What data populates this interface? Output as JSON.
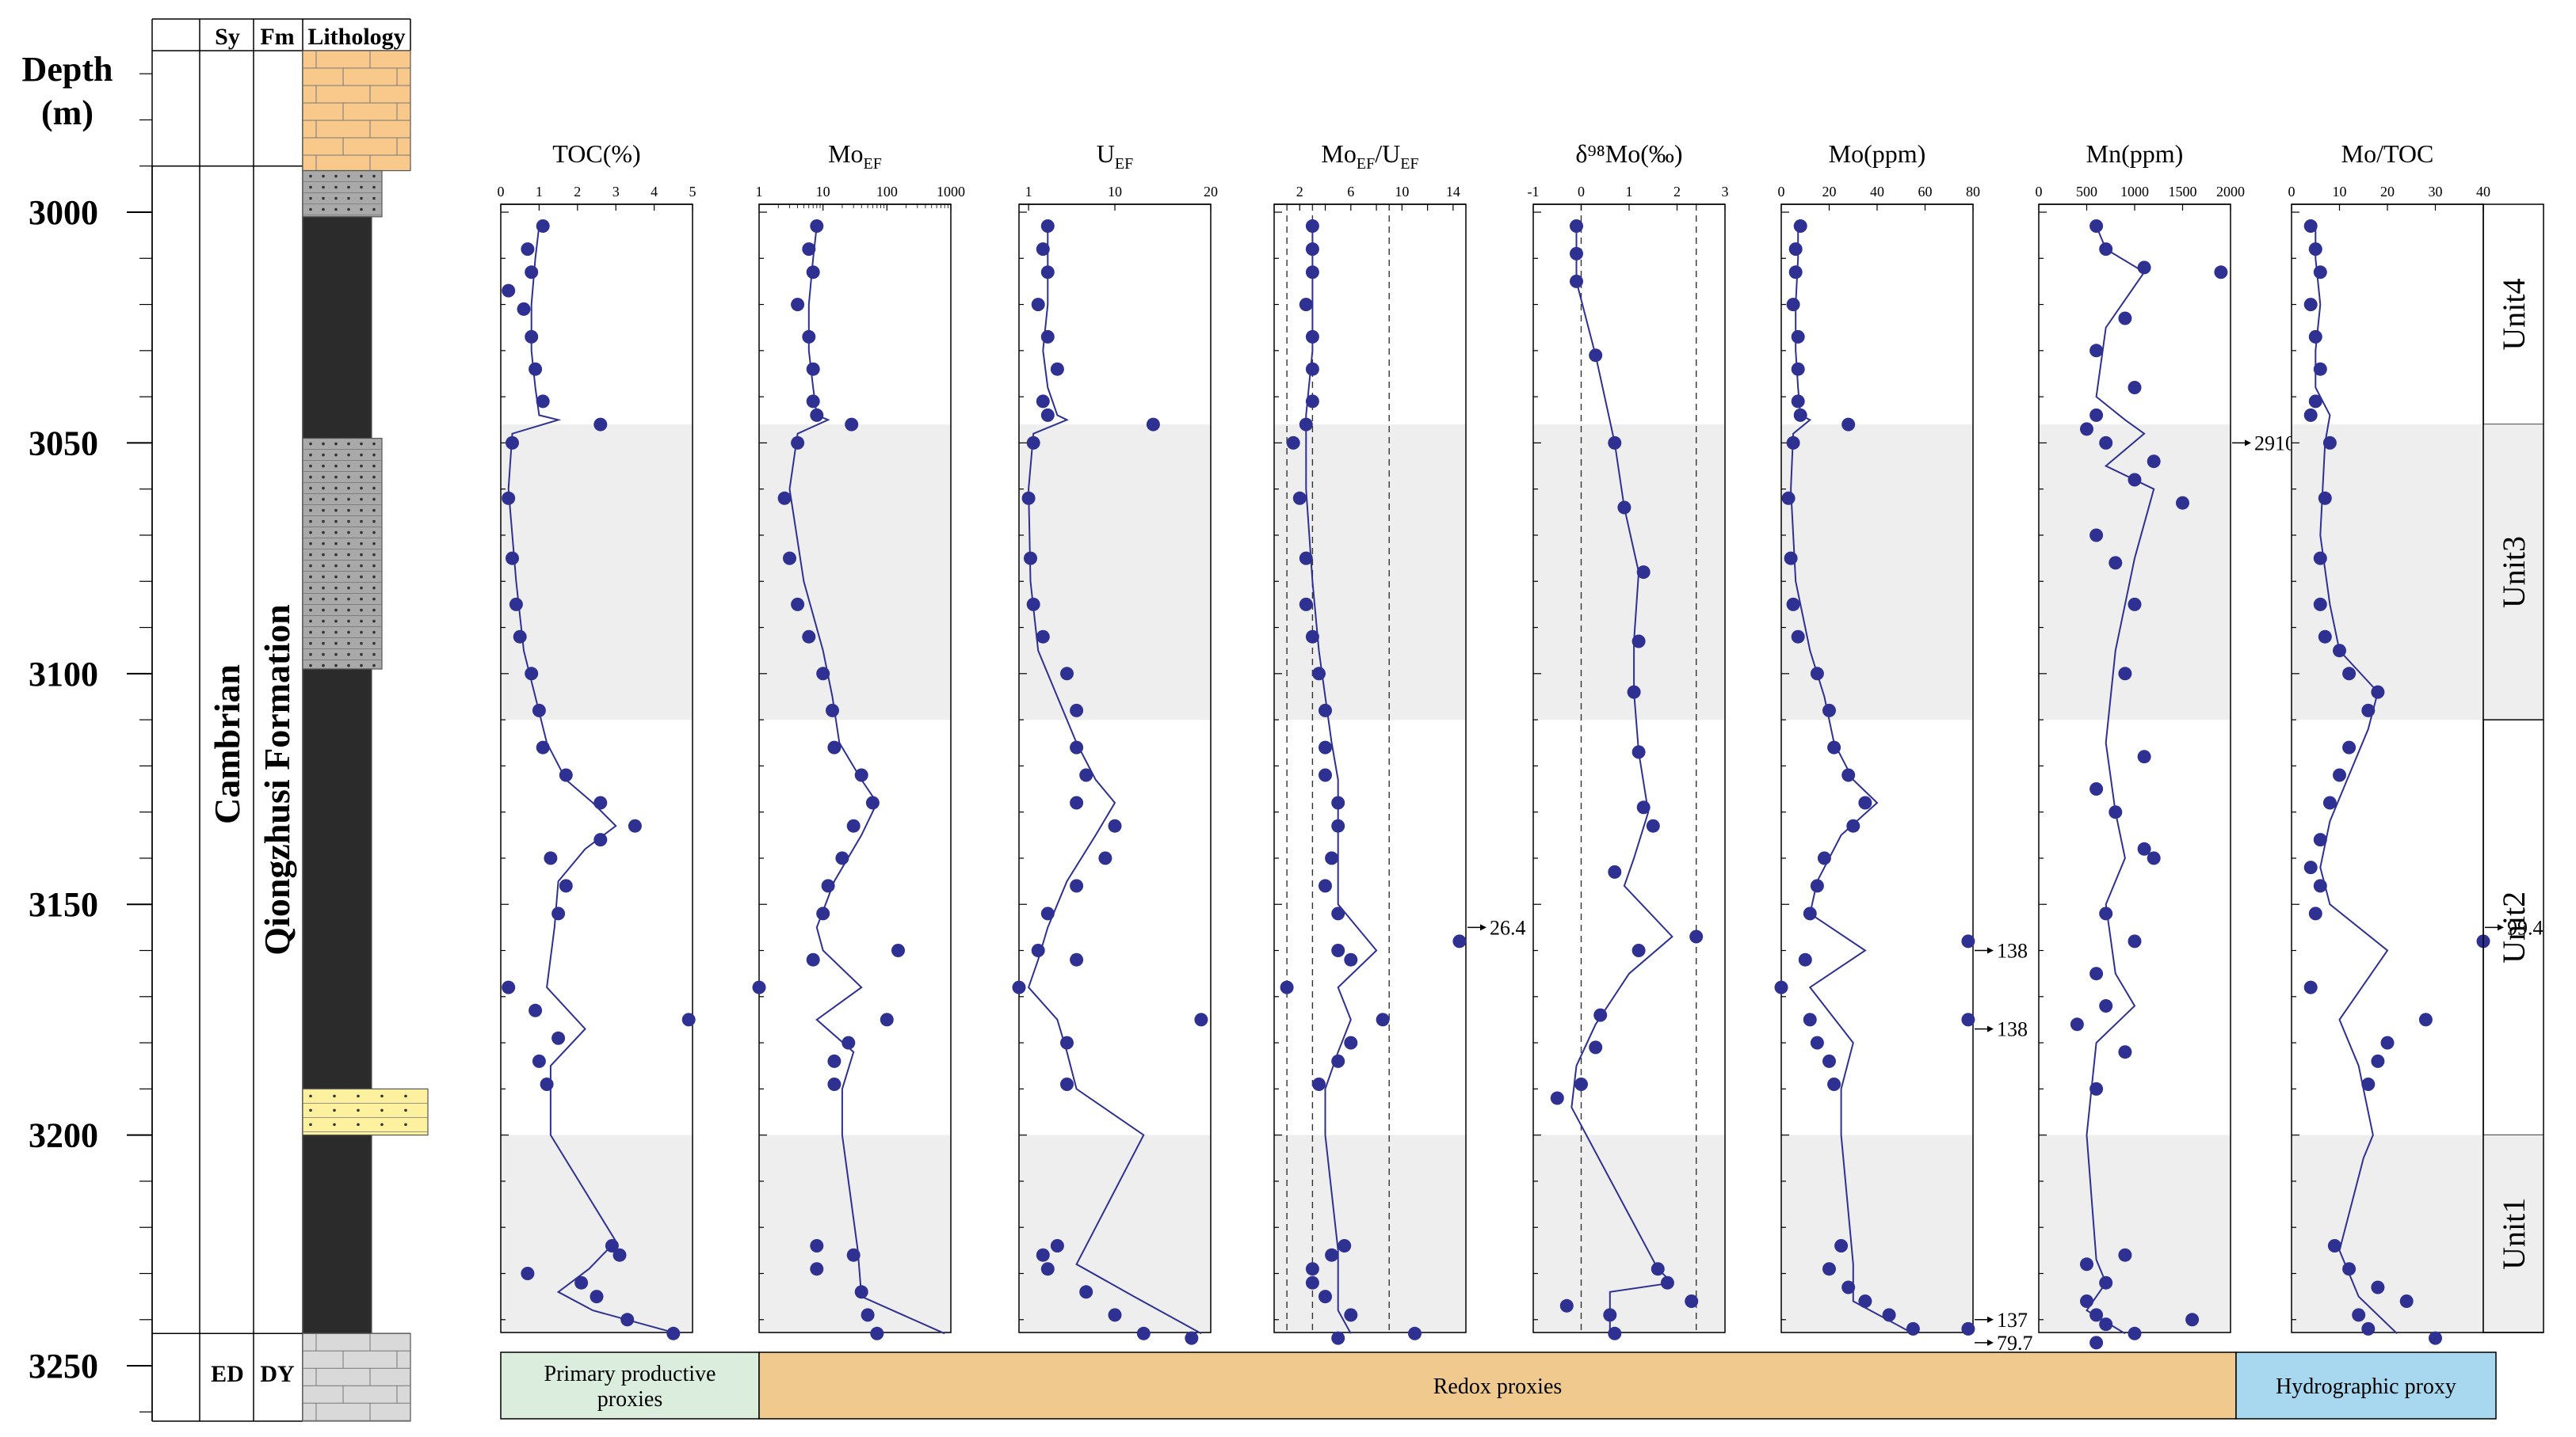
{
  "column": {
    "depth_label": [
      "Depth",
      "(m)"
    ],
    "headers": {
      "sy": "Sy",
      "fm": "Fm",
      "lithology": "Lithology"
    },
    "system": "Cambrian",
    "formation": "Qiongzhusi Formation",
    "bottom_system": "ED",
    "bottom_formation": "DY",
    "depth_ticks": [
      "3000",
      "3050",
      "3100",
      "3150",
      "3200",
      "3250"
    ],
    "depth_range": [
      2965,
      3262
    ],
    "lithology": [
      {
        "from": 2965,
        "to": 2991,
        "type": "dolomite",
        "color": "#f9c98c"
      },
      {
        "from": 2991,
        "to": 3001,
        "type": "silty-mudstone",
        "color": "#a9a9a9"
      },
      {
        "from": 3001,
        "to": 3049,
        "type": "black-shale",
        "color": "#2b2b2b"
      },
      {
        "from": 3049,
        "to": 3099,
        "type": "silty-mudstone",
        "color": "#a9a9a9"
      },
      {
        "from": 3099,
        "to": 3190,
        "type": "black-shale",
        "color": "#2b2b2b"
      },
      {
        "from": 3190,
        "to": 3200,
        "type": "sandstone",
        "color": "#fdf1a0"
      },
      {
        "from": 3200,
        "to": 3243,
        "type": "black-shale",
        "color": "#2b2b2b"
      },
      {
        "from": 3243,
        "to": 3262,
        "type": "limestone",
        "color": "#d9d9d9"
      }
    ]
  },
  "units": [
    {
      "label": "Unit4",
      "from": 2965,
      "to": 3046,
      "shaded": false
    },
    {
      "label": "Unit3",
      "from": 3046,
      "to": 3110,
      "shaded": true
    },
    {
      "label": "Unit2",
      "from": 3110,
      "to": 3200,
      "shaded": false
    },
    {
      "label": "Unit1",
      "from": 3200,
      "to": 3243,
      "shaded": true
    }
  ],
  "categories": [
    {
      "label": "Primary productive proxies",
      "lines": [
        "Primary productive",
        "proxies"
      ],
      "color": "#dbeedd"
    },
    {
      "label": "Redox proxies",
      "lines": [
        "Redox proxies"
      ],
      "color": "#f0c98f"
    },
    {
      "label": "Hydrographic proxy",
      "lines": [
        "Hydrographic proxy"
      ],
      "color": "#a7d8f0"
    }
  ],
  "colors": {
    "point": "#2e3192",
    "line": "#2e3192",
    "shade": "#eeeeee"
  },
  "chart_data": [
    {
      "type": "scatter",
      "title": "TOC(%)",
      "title_sub": "",
      "scale": "linear",
      "xlim": [
        0,
        5
      ],
      "ticks": [
        0,
        1,
        2,
        3,
        4,
        5
      ],
      "tick_labels": [
        "0",
        "1",
        "2",
        "3",
        "4",
        "5"
      ],
      "x": [
        1.1,
        0.7,
        0.8,
        0.2,
        0.6,
        0.8,
        0.9,
        1.1,
        2.6,
        0.3,
        0.2,
        0.3,
        0.4,
        0.5,
        0.8,
        1.0,
        1.1,
        1.7,
        2.6,
        3.5,
        2.6,
        1.3,
        1.7,
        1.5,
        0.2,
        4.9,
        0.9,
        1.0,
        1.5,
        1.2,
        2.9,
        3.1,
        0.7,
        2.1,
        2.5,
        3.3,
        4.5
      ],
      "y": [
        3003,
        3008,
        3013,
        3017,
        3021,
        3027,
        3034,
        3041,
        3046,
        3050,
        3062,
        3075,
        3085,
        3092,
        3100,
        3108,
        3116,
        3122,
        3128,
        3133,
        3136,
        3140,
        3146,
        3152,
        3168,
        3175,
        3173,
        3184,
        3179,
        3189,
        3224,
        3226,
        3230,
        3232,
        3235,
        3240,
        3243
      ],
      "trend_x": [
        1.0,
        0.9,
        0.8,
        0.8,
        0.9,
        1.0,
        1.5,
        0.3,
        0.2,
        0.4,
        0.6,
        0.9,
        1.2,
        1.7,
        2.4,
        3.0,
        2.2,
        1.5,
        1.4,
        1.2,
        2.2,
        1.3,
        1.3,
        3.0,
        2.3,
        1.5,
        2.4,
        4.6
      ],
      "trend_y": [
        3003,
        3010,
        3020,
        3030,
        3038,
        3044,
        3045,
        3048,
        3060,
        3080,
        3095,
        3105,
        3115,
        3123,
        3128,
        3133,
        3138,
        3145,
        3155,
        3168,
        3177,
        3185,
        3200,
        3223,
        3229,
        3234,
        3238,
        3243
      ],
      "annotations": []
    },
    {
      "type": "scatter",
      "title": "Mo",
      "title_sub": "EF",
      "scale": "log",
      "xlim": [
        1,
        1000
      ],
      "ticks": [
        1,
        10,
        100,
        1000
      ],
      "tick_labels": [
        "1",
        "10",
        "100",
        "1000"
      ],
      "x": [
        8,
        6,
        7,
        4,
        6,
        7,
        7,
        8,
        28,
        4,
        2.5,
        3,
        4,
        6,
        10,
        14,
        15,
        40,
        60,
        30,
        20,
        12,
        10,
        7,
        1,
        150,
        100,
        25,
        15,
        15,
        8,
        8,
        30,
        40,
        50,
        70
      ],
      "y": [
        3003,
        3008,
        3013,
        3020,
        3027,
        3034,
        3041,
        3044,
        3046,
        3050,
        3062,
        3075,
        3085,
        3092,
        3100,
        3108,
        3116,
        3122,
        3128,
        3133,
        3140,
        3146,
        3152,
        3162,
        3168,
        3160,
        3175,
        3180,
        3184,
        3189,
        3224,
        3229,
        3226,
        3234,
        3239,
        3243
      ],
      "trend_x": [
        8,
        7,
        6,
        6,
        7,
        8,
        12,
        4,
        3,
        5,
        10,
        14,
        18,
        40,
        70,
        40,
        15,
        8,
        10,
        40,
        8,
        30,
        20,
        20,
        35,
        40,
        800
      ],
      "trend_y": [
        3003,
        3010,
        3020,
        3030,
        3038,
        3044,
        3045,
        3048,
        3060,
        3080,
        3095,
        3105,
        3115,
        3123,
        3128,
        3135,
        3145,
        3155,
        3160,
        3168,
        3175,
        3182,
        3190,
        3200,
        3225,
        3235,
        3243
      ],
      "annotations": []
    },
    {
      "type": "scatter",
      "title": "U",
      "title_sub": "EF",
      "scale": "linear",
      "xlim": [
        0,
        20
      ],
      "ticks": [
        1,
        10,
        20
      ],
      "tick_labels": [
        "1",
        "10",
        "20"
      ],
      "x": [
        3,
        2.5,
        3,
        2,
        3,
        4,
        2.5,
        3,
        14,
        1.5,
        1,
        1.2,
        1.5,
        2.5,
        5,
        6,
        6,
        7,
        6,
        10,
        9,
        6,
        3,
        2,
        6,
        0,
        19,
        5,
        5,
        4,
        2.5,
        3,
        7,
        10,
        13,
        18
      ],
      "y": [
        3003,
        3008,
        3013,
        3020,
        3027,
        3034,
        3041,
        3044,
        3046,
        3050,
        3062,
        3075,
        3085,
        3092,
        3100,
        3108,
        3116,
        3122,
        3128,
        3133,
        3140,
        3146,
        3152,
        3160,
        3162,
        3168,
        3175,
        3180,
        3189,
        3224,
        3226,
        3229,
        3234,
        3239,
        3243,
        3244
      ],
      "trend_x": [
        3,
        3,
        3,
        2.5,
        3,
        4,
        5,
        1.5,
        1,
        1.2,
        2,
        4,
        6,
        8,
        10,
        8,
        5,
        3,
        2,
        1,
        4,
        5,
        6,
        13,
        6,
        12,
        19
      ],
      "trend_y": [
        3003,
        3010,
        3020,
        3030,
        3038,
        3044,
        3045,
        3048,
        3060,
        3080,
        3095,
        3105,
        3115,
        3123,
        3128,
        3135,
        3145,
        3155,
        3162,
        3168,
        3175,
        3182,
        3190,
        3200,
        3228,
        3235,
        3243
      ],
      "annotations": []
    },
    {
      "type": "scatter",
      "title": "Mo",
      "title_sub": "EF",
      "title_rest": "/U",
      "title_sub2": "EF",
      "scale": "linear",
      "xlim": [
        0,
        15
      ],
      "ticks": [
        0,
        2,
        4,
        6,
        8,
        10,
        12,
        14
      ],
      "tick_labels": [
        "",
        "2",
        "",
        "6",
        "",
        "10",
        "",
        "14"
      ],
      "ref_lines": [
        1,
        3,
        9
      ],
      "x": [
        3,
        3,
        3,
        2.5,
        3,
        3,
        3,
        2.5,
        1.5,
        2,
        2.5,
        2.5,
        3,
        3.5,
        4,
        4,
        4,
        5,
        5,
        4.5,
        4,
        5,
        5,
        6,
        1,
        8.5,
        6,
        5,
        3.5,
        14.5,
        5.5,
        4.5,
        3,
        3,
        4,
        6,
        11,
        5
      ],
      "y": [
        3003,
        3008,
        3013,
        3020,
        3027,
        3034,
        3041,
        3046,
        3050,
        3062,
        3075,
        3085,
        3092,
        3100,
        3108,
        3116,
        3122,
        3128,
        3133,
        3140,
        3146,
        3152,
        3160,
        3162,
        3168,
        3175,
        3180,
        3184,
        3189,
        3158,
        3224,
        3226,
        3229,
        3232,
        3235,
        3239,
        3243,
        3244
      ],
      "trend_x": [
        3,
        3,
        3,
        3,
        2.5,
        2.5,
        3,
        3.5,
        4,
        4.5,
        5,
        5,
        5,
        8,
        5,
        6,
        5,
        4,
        4,
        5,
        5,
        5,
        6
      ],
      "trend_y": [
        3003,
        3010,
        3020,
        3030,
        3044,
        3060,
        3080,
        3095,
        3105,
        3115,
        3123,
        3135,
        3150,
        3160,
        3168,
        3175,
        3182,
        3190,
        3200,
        3225,
        3232,
        3238,
        3243
      ],
      "annotations": [
        {
          "text": "26.4",
          "y": 3155
        }
      ]
    },
    {
      "type": "scatter",
      "title": "δ⁹⁸Mo(‰)",
      "title_sub": "",
      "scale": "linear",
      "xlim": [
        -1,
        3
      ],
      "ticks": [
        -1,
        0,
        1,
        2,
        3
      ],
      "tick_labels": [
        "-1",
        "0",
        "1",
        "2",
        "3"
      ],
      "ref_lines": [
        0,
        2.4
      ],
      "x": [
        -0.1,
        -0.1,
        -0.1,
        0.3,
        0.7,
        0.9,
        1.3,
        1.2,
        1.1,
        1.2,
        1.3,
        1.5,
        0.7,
        2.4,
        1.2,
        0.4,
        0.3,
        0,
        -0.5,
        1.6,
        1.8,
        2.3,
        -0.3,
        0.6,
        0.7
      ],
      "y": [
        3003,
        3009,
        3015,
        3031,
        3050,
        3064,
        3078,
        3093,
        3104,
        3117,
        3129,
        3133,
        3143,
        3157,
        3160,
        3174,
        3181,
        3189,
        3192,
        3229,
        3232,
        3236,
        3237,
        3239,
        3243
      ],
      "trend_x": [
        -0.1,
        -0.1,
        0.3,
        0.7,
        0.9,
        1.2,
        1.1,
        1.1,
        1.2,
        1.4,
        1.1,
        0.9,
        1.9,
        1.0,
        0.3,
        -0.1,
        -0.2,
        1.6,
        1.9,
        0.6,
        0.6
      ],
      "trend_y": [
        3003,
        3015,
        3031,
        3050,
        3064,
        3078,
        3093,
        3104,
        3117,
        3130,
        3140,
        3146,
        3157,
        3165,
        3176,
        3185,
        3194,
        3229,
        3232,
        3234,
        3243
      ],
      "annotations": []
    },
    {
      "type": "scatter",
      "title": "Mo(ppm)",
      "title_sub": "",
      "scale": "linear",
      "xlim": [
        0,
        80
      ],
      "ticks": [
        0,
        20,
        40,
        60,
        80
      ],
      "tick_labels": [
        "0",
        "20",
        "40",
        "60",
        "80"
      ],
      "x": [
        8,
        6,
        6,
        5,
        7,
        7,
        7,
        8,
        28,
        5,
        3,
        4,
        5,
        7,
        15,
        20,
        22,
        28,
        35,
        30,
        18,
        15,
        12,
        10,
        0,
        12,
        15,
        20,
        22,
        25,
        20,
        28,
        35,
        45,
        55,
        78,
        78,
        78
      ],
      "y": [
        3003,
        3008,
        3013,
        3020,
        3027,
        3034,
        3041,
        3044,
        3046,
        3050,
        3062,
        3075,
        3085,
        3092,
        3100,
        3108,
        3116,
        3122,
        3128,
        3133,
        3140,
        3146,
        3152,
        3162,
        3168,
        3175,
        3180,
        3184,
        3189,
        3224,
        3229,
        3233,
        3236,
        3239,
        3242,
        3158,
        3175,
        3242
      ],
      "trend_x": [
        7,
        7,
        6,
        6,
        7,
        8,
        12,
        5,
        4,
        6,
        12,
        18,
        22,
        30,
        40,
        25,
        15,
        12,
        35,
        12,
        30,
        25,
        25,
        30,
        30,
        55
      ],
      "trend_y": [
        3003,
        3010,
        3020,
        3030,
        3038,
        3044,
        3045,
        3048,
        3060,
        3080,
        3095,
        3105,
        3115,
        3123,
        3128,
        3135,
        3145,
        3152,
        3160,
        3168,
        3180,
        3190,
        3200,
        3228,
        3236,
        3243
      ],
      "annotations": [
        {
          "text": "138",
          "y": 3160
        },
        {
          "text": "138",
          "y": 3177
        },
        {
          "text": "137",
          "y": 3240
        },
        {
          "text": "79.7",
          "y": 3245
        }
      ]
    },
    {
      "type": "scatter",
      "title": "Mn(ppm)",
      "title_sub": "",
      "scale": "linear",
      "xlim": [
        0,
        2000
      ],
      "ticks": [
        0,
        500,
        1000,
        1500,
        2000
      ],
      "tick_labels": [
        "0",
        "500",
        "1000",
        "1500",
        "2000"
      ],
      "x": [
        600,
        700,
        1100,
        1900,
        900,
        600,
        1000,
        600,
        500,
        700,
        1200,
        1000,
        1500,
        600,
        800,
        1000,
        900,
        1100,
        600,
        800,
        1100,
        700,
        1000,
        1200,
        600,
        700,
        400,
        900,
        600,
        500,
        700,
        500,
        600,
        700,
        1000,
        1600,
        900,
        600
      ],
      "y": [
        3003,
        3008,
        3012,
        3013,
        3023,
        3030,
        3038,
        3044,
        3047,
        3050,
        3054,
        3058,
        3063,
        3070,
        3076,
        3085,
        3100,
        3118,
        3125,
        3130,
        3138,
        3152,
        3158,
        3140,
        3165,
        3172,
        3176,
        3182,
        3190,
        3228,
        3232,
        3236,
        3239,
        3241,
        3243,
        3240,
        3226,
        3245
      ],
      "trend_x": [
        600,
        700,
        1100,
        700,
        600,
        900,
        1100,
        700,
        1200,
        1000,
        800,
        700,
        800,
        900,
        700,
        800,
        1000,
        600,
        500,
        600,
        700,
        500,
        900
      ],
      "trend_y": [
        3003,
        3008,
        3013,
        3025,
        3040,
        3045,
        3048,
        3055,
        3060,
        3075,
        3095,
        3115,
        3130,
        3140,
        3150,
        3165,
        3172,
        3180,
        3200,
        3227,
        3232,
        3238,
        3243
      ],
      "annotations": [
        {
          "text": "2910",
          "y": 3050
        }
      ]
    },
    {
      "type": "scatter",
      "title": "Mo/TOC",
      "title_sub": "",
      "scale": "linear",
      "xlim": [
        0,
        40
      ],
      "ticks": [
        0,
        10,
        20,
        30,
        40
      ],
      "tick_labels": [
        "0",
        "10",
        "20",
        "30",
        "40"
      ],
      "x": [
        4,
        5,
        6,
        4,
        5,
        6,
        5,
        4,
        8,
        7,
        6,
        6,
        7,
        10,
        12,
        18,
        16,
        12,
        10,
        8,
        6,
        4,
        6,
        5,
        40,
        4,
        28,
        20,
        18,
        16,
        9,
        12,
        18,
        24,
        14,
        16,
        30
      ],
      "y": [
        3003,
        3008,
        3013,
        3020,
        3027,
        3034,
        3041,
        3044,
        3050,
        3062,
        3075,
        3085,
        3092,
        3095,
        3100,
        3104,
        3108,
        3116,
        3122,
        3128,
        3136,
        3142,
        3146,
        3152,
        3158,
        3168,
        3175,
        3180,
        3184,
        3189,
        3224,
        3229,
        3233,
        3236,
        3239,
        3242,
        3244
      ],
      "trend_x": [
        5,
        5,
        6,
        5,
        5,
        8,
        7,
        6,
        8,
        10,
        18,
        16,
        12,
        8,
        6,
        8,
        20,
        10,
        14,
        17,
        15,
        10,
        14,
        22
      ],
      "trend_y": [
        3003,
        3010,
        3020,
        3030,
        3038,
        3044,
        3050,
        3070,
        3085,
        3095,
        3104,
        3112,
        3122,
        3132,
        3142,
        3150,
        3160,
        3175,
        3185,
        3200,
        3205,
        3225,
        3235,
        3243
      ],
      "annotations": [
        {
          "text": "99.4",
          "y": 3155
        }
      ]
    }
  ]
}
